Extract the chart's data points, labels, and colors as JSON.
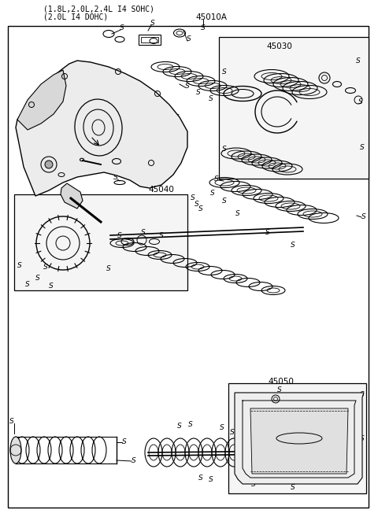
{
  "title_line1": "(1.8L,2.0L,2.4L I4 SOHC)",
  "title_line2": "(2.0L I4 DOHC)",
  "label_45010A": "45010A",
  "label_45030": "45030",
  "label_45040": "45040",
  "label_45050": "45050",
  "bg_color": "#ffffff",
  "border_color": "#000000",
  "line_color": "#000000",
  "text_color": "#000000",
  "fig_width": 4.8,
  "fig_height": 6.57,
  "dpi": 100
}
